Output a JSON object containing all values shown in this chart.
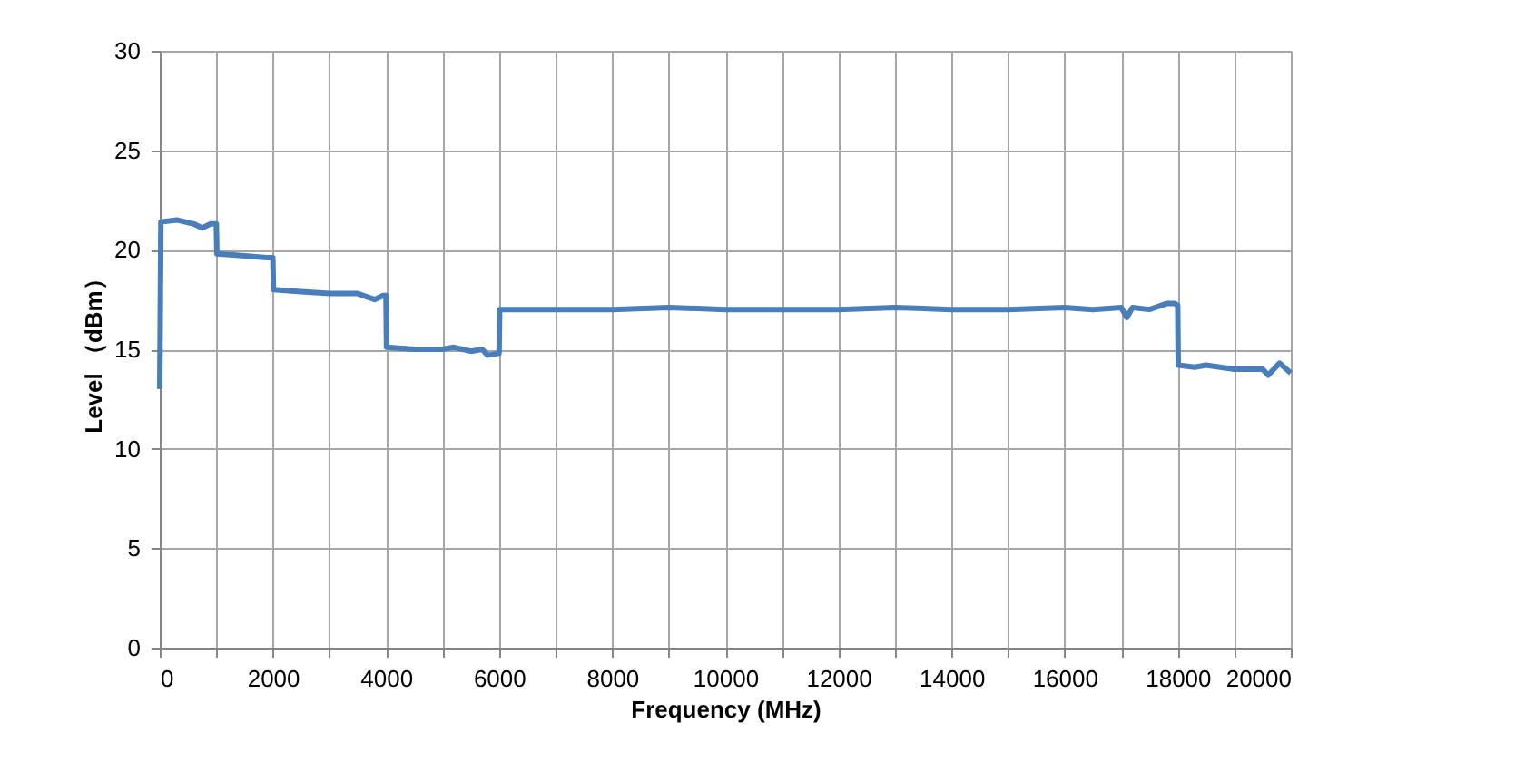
{
  "chart_data": {
    "type": "line",
    "xlabel": "Frequency (MHz)",
    "ylabel": "Level （dBm）",
    "series": [
      {
        "color": "#4a7ebb",
        "x": [
          0,
          20,
          300,
          600,
          750,
          900,
          1000,
          1010,
          1500,
          1900,
          2000,
          2010,
          2500,
          3000,
          3500,
          3800,
          3950,
          4000,
          4010,
          4500,
          5000,
          5200,
          5500,
          5700,
          5800,
          6000,
          6010,
          7000,
          8000,
          9000,
          10000,
          11000,
          12000,
          13000,
          14000,
          15000,
          16000,
          16500,
          17000,
          17100,
          17200,
          17500,
          17800,
          17950,
          18000,
          18010,
          18300,
          18500,
          19000,
          19500,
          19600,
          19800,
          20000
        ],
        "values": [
          13,
          21.4,
          21.5,
          21.3,
          21.1,
          21.3,
          21.3,
          19.8,
          19.7,
          19.6,
          19.6,
          18.0,
          17.9,
          17.8,
          17.8,
          17.5,
          17.7,
          17.7,
          15.1,
          15.0,
          15.0,
          15.1,
          14.9,
          15.0,
          14.7,
          14.8,
          17.0,
          17.0,
          17.0,
          17.1,
          17.0,
          17.0,
          17.0,
          17.1,
          17.0,
          17.0,
          17.1,
          17.0,
          17.1,
          16.6,
          17.1,
          17.0,
          17.3,
          17.3,
          17.2,
          14.2,
          14.1,
          14.2,
          14.0,
          14.0,
          13.7,
          14.3,
          13.8
        ]
      }
    ],
    "xlim": [
      0,
      20000
    ],
    "ylim": [
      0,
      30
    ],
    "xticks": [
      0,
      {
        "value": 1000,
        "label": null
      },
      2000,
      {
        "value": 3000,
        "label": null
      },
      4000,
      {
        "value": 5000,
        "label": null
      },
      6000,
      {
        "value": 7000,
        "label": null
      },
      8000,
      {
        "value": 9000,
        "label": null
      },
      10000,
      {
        "value": 11000,
        "label": null
      },
      12000,
      {
        "value": 13000,
        "label": null
      },
      14000,
      {
        "value": 15000,
        "label": null
      },
      16000,
      {
        "value": 17000,
        "label": null
      },
      18000,
      {
        "value": 19000,
        "label": null
      },
      20000
    ],
    "yticks": [
      0,
      5,
      10,
      15,
      20,
      25,
      30
    ],
    "grid": true,
    "marker": "none",
    "line_style": "solid",
    "legend": false
  }
}
